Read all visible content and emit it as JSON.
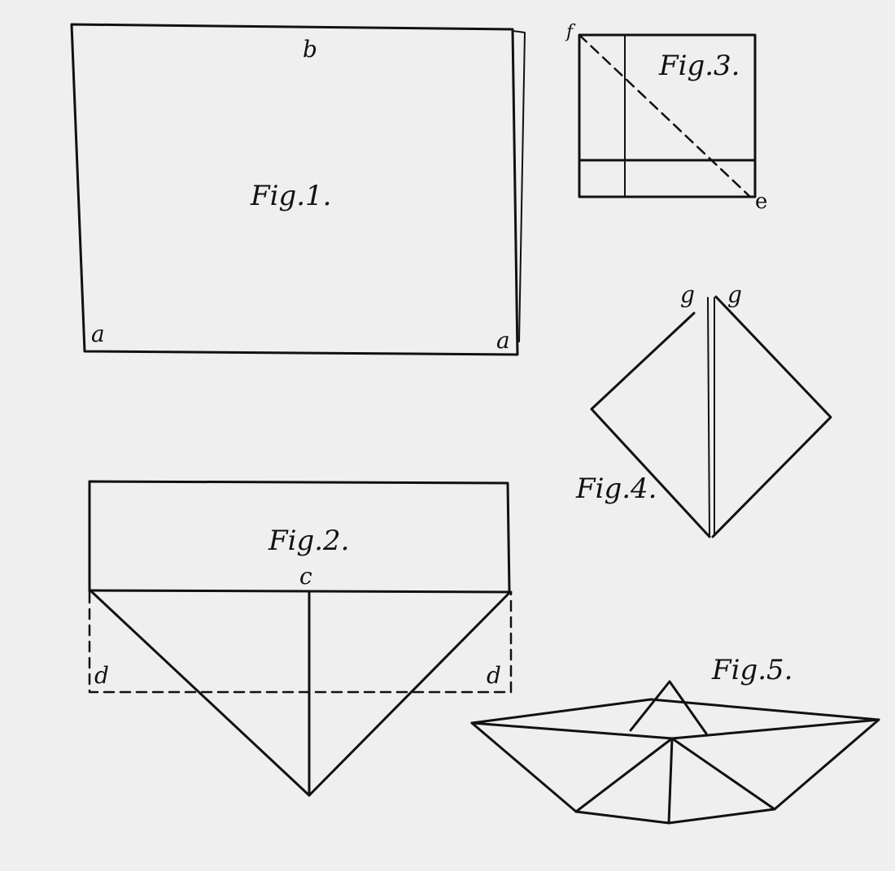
{
  "figures": {
    "fig1": {
      "label": "Fig.1.",
      "points": {
        "top": "b",
        "bottom_left": "a",
        "bottom_right": "a"
      }
    },
    "fig2": {
      "label": "Fig.2.",
      "points": {
        "center": "c",
        "left": "d",
        "right": "d"
      }
    },
    "fig3": {
      "label": "Fig.3.",
      "points": {
        "top_left": "f",
        "bottom_right": "e"
      }
    },
    "fig4": {
      "label": "Fig.4.",
      "points": {
        "left_peak": "g",
        "right_peak": "g"
      }
    },
    "fig5": {
      "label": "Fig.5."
    }
  }
}
